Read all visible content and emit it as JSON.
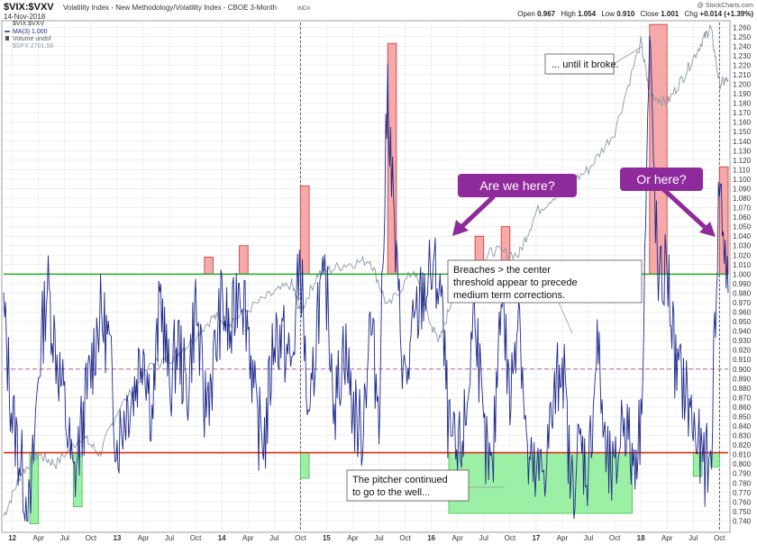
{
  "header": {
    "symbol": "$VIX:$VXV",
    "description": "Volatility Index - New Methodology/Volatility Index - CBOE 3-Month",
    "exchange": "INDX",
    "date": "14-Nov-2018",
    "copyright": "@ StockCharts.com",
    "quote": {
      "open_label": "Open",
      "open": "0.967",
      "high_label": "High",
      "high": "1.054",
      "low_label": "Low",
      "low": "0.910",
      "close_label": "Close",
      "close": "1.001",
      "chg_label": "Chg",
      "chg": "+0.014 (+1.39%)"
    }
  },
  "legend": [
    {
      "label": "$VIX:$VXV",
      "color": "#333333"
    },
    {
      "label": "MA(3) 1.000",
      "color": "#1f2a8c"
    },
    {
      "label": "Volume undsf",
      "color": "#555555"
    },
    {
      "label": "$SPX 2701.58",
      "color": "#8a9aa6"
    }
  ],
  "annotations": [
    {
      "name": "annotation-until-broke",
      "lines": [
        "... until it broke."
      ]
    },
    {
      "name": "annotation-breaches",
      "lines": [
        "Breaches > the center",
        "threshold appear to precede",
        "medium term corrections."
      ]
    },
    {
      "name": "annotation-pitcher",
      "lines": [
        "The pitcher continued",
        "to go to the well..."
      ]
    }
  ],
  "callouts": [
    {
      "name": "callout-are-we-here",
      "text": "Are we here?"
    },
    {
      "name": "callout-or-here",
      "text": "Or here?"
    }
  ],
  "colors": {
    "ratio_line": "#1f2a8c",
    "spx_line": "#8a9aa6",
    "upper_threshold": "#22aa22",
    "lower_threshold": "#e03010",
    "center_threshold": "#c080b0",
    "breach_fill": "#f4a0a0",
    "low_fill": "#90ee9c",
    "callout": "#8e2a9c",
    "grid": "#e6e6e6"
  },
  "chart_data": {
    "type": "line",
    "ylim": [
      0.73,
      1.265
    ],
    "y_ticks": [
      "0.740",
      "0.750",
      "0.760",
      "0.770",
      "0.780",
      "0.790",
      "0.800",
      "0.810",
      "0.820",
      "0.830",
      "0.840",
      "0.850",
      "0.860",
      "0.870",
      "0.880",
      "0.890",
      "0.900",
      "0.910",
      "0.920",
      "0.930",
      "0.940",
      "0.950",
      "0.960",
      "0.970",
      "0.980",
      "0.990",
      "1.000",
      "1.010",
      "1.020",
      "1.030",
      "1.040",
      "1.050",
      "1.060",
      "1.070",
      "1.080",
      "1.090",
      "1.100",
      "1.110",
      "1.120",
      "1.130",
      "1.140",
      "1.150",
      "1.160",
      "1.170",
      "1.180",
      "1.190",
      "1.200",
      "1.210",
      "1.220",
      "1.230",
      "1.240",
      "1.250",
      "1.260"
    ],
    "x_range": [
      "2011-12",
      "2018-11"
    ],
    "x_ticks": [
      {
        "label": "12",
        "date": "2012-01",
        "bold": true
      },
      {
        "label": "Apr",
        "date": "2012-04"
      },
      {
        "label": "Jul",
        "date": "2012-07"
      },
      {
        "label": "Oct",
        "date": "2012-10"
      },
      {
        "label": "13",
        "date": "2013-01",
        "bold": true
      },
      {
        "label": "Apr",
        "date": "2013-04"
      },
      {
        "label": "Jul",
        "date": "2013-07"
      },
      {
        "label": "Oct",
        "date": "2013-10"
      },
      {
        "label": "14",
        "date": "2014-01",
        "bold": true
      },
      {
        "label": "Apr",
        "date": "2014-04"
      },
      {
        "label": "Jul",
        "date": "2014-07"
      },
      {
        "label": "Oct",
        "date": "2014-10"
      },
      {
        "label": "15",
        "date": "2015-01",
        "bold": true
      },
      {
        "label": "Apr",
        "date": "2015-04"
      },
      {
        "label": "Jul",
        "date": "2015-07"
      },
      {
        "label": "Oct",
        "date": "2015-10"
      },
      {
        "label": "16",
        "date": "2016-01",
        "bold": true
      },
      {
        "label": "Apr",
        "date": "2016-04"
      },
      {
        "label": "Jul",
        "date": "2016-07"
      },
      {
        "label": "Oct",
        "date": "2016-10"
      },
      {
        "label": "17",
        "date": "2017-01",
        "bold": true
      },
      {
        "label": "Apr",
        "date": "2017-04"
      },
      {
        "label": "Jul",
        "date": "2017-07"
      },
      {
        "label": "Oct",
        "date": "2017-10"
      },
      {
        "label": "18",
        "date": "2018-01",
        "bold": true
      },
      {
        "label": "Apr",
        "date": "2018-04"
      },
      {
        "label": "Jul",
        "date": "2018-07"
      },
      {
        "label": "Oct",
        "date": "2018-10"
      }
    ],
    "thresholds": {
      "upper": 1.0,
      "center": 0.9,
      "lower": 0.812
    },
    "vertical_markers": [
      "2014-10",
      "2018-10"
    ],
    "breach_zones": [
      {
        "start": "2013-11",
        "end": "2013-12",
        "y1": 1.0,
        "y2": 1.018
      },
      {
        "start": "2014-03",
        "end": "2014-04",
        "y1": 1.0,
        "y2": 1.03
      },
      {
        "start": "2014-10",
        "end": "2014-11",
        "y1": 1.0,
        "y2": 1.093
      },
      {
        "start": "2015-08",
        "end": "2015-09",
        "y1": 1.0,
        "y2": 1.243
      },
      {
        "start": "2016-06",
        "end": "2016-07",
        "y1": 1.0,
        "y2": 1.04
      },
      {
        "start": "2016-09",
        "end": "2016-10",
        "y1": 1.0,
        "y2": 1.05
      },
      {
        "start": "2018-02",
        "end": "2018-04",
        "y1": 1.0,
        "y2": 1.263
      },
      {
        "start": "2018-10",
        "end": "2018-11",
        "y1": 1.0,
        "y2": 1.113
      }
    ],
    "low_zones": [
      {
        "start": "2012-03",
        "end": "2012-04",
        "y1": 0.737,
        "y2": 0.812
      },
      {
        "start": "2012-08",
        "end": "2012-09",
        "y1": 0.755,
        "y2": 0.812
      },
      {
        "start": "2014-10",
        "end": "2014-11",
        "y1": 0.785,
        "y2": 0.812
      },
      {
        "start": "2016-03",
        "end": "2017-12",
        "y1": 0.748,
        "y2": 0.812
      },
      {
        "start": "2018-07",
        "end": "2018-08",
        "y1": 0.787,
        "y2": 0.812
      },
      {
        "start": "2018-09",
        "end": "2018-10",
        "y1": 0.797,
        "y2": 0.812
      }
    ],
    "ratio_series": {
      "name": "MA(3)",
      "points": [
        [
          "2011-12",
          0.96
        ],
        [
          "2012-01",
          0.85
        ],
        [
          "2012-02",
          0.8
        ],
        [
          "2012-03",
          0.74
        ],
        [
          "2012-04",
          0.9
        ],
        [
          "2012-05",
          0.99
        ],
        [
          "2012-06",
          0.92
        ],
        [
          "2012-07",
          0.86
        ],
        [
          "2012-08",
          0.78
        ],
        [
          "2012-09",
          0.84
        ],
        [
          "2012-10",
          0.9
        ],
        [
          "2012-11",
          0.96
        ],
        [
          "2012-12",
          0.93
        ],
        [
          "2013-01",
          0.82
        ],
        [
          "2013-02",
          0.86
        ],
        [
          "2013-03",
          0.88
        ],
        [
          "2013-04",
          0.93
        ],
        [
          "2013-05",
          0.85
        ],
        [
          "2013-06",
          0.98
        ],
        [
          "2013-07",
          0.88
        ],
        [
          "2013-08",
          0.93
        ],
        [
          "2013-09",
          0.87
        ],
        [
          "2013-10",
          0.97
        ],
        [
          "2013-11",
          0.86
        ],
        [
          "2013-12",
          0.9
        ],
        [
          "2014-01",
          0.97
        ],
        [
          "2014-02",
          0.93
        ],
        [
          "2014-03",
          1.0
        ],
        [
          "2014-04",
          0.95
        ],
        [
          "2014-05",
          0.84
        ],
        [
          "2014-06",
          0.83
        ],
        [
          "2014-07",
          0.94
        ],
        [
          "2014-08",
          0.93
        ],
        [
          "2014-09",
          0.9
        ],
        [
          "2014-10",
          1.02
        ],
        [
          "2014-11",
          0.82
        ],
        [
          "2014-12",
          0.97
        ],
        [
          "2015-01",
          0.98
        ],
        [
          "2015-02",
          0.86
        ],
        [
          "2015-03",
          0.93
        ],
        [
          "2015-04",
          0.86
        ],
        [
          "2015-05",
          0.83
        ],
        [
          "2015-06",
          0.95
        ],
        [
          "2015-07",
          0.86
        ],
        [
          "2015-08",
          1.2
        ],
        [
          "2015-09",
          1.0
        ],
        [
          "2015-10",
          0.88
        ],
        [
          "2015-11",
          0.94
        ],
        [
          "2015-12",
          0.98
        ],
        [
          "2016-01",
          1.0
        ],
        [
          "2016-02",
          0.99
        ],
        [
          "2016-03",
          0.83
        ],
        [
          "2016-04",
          0.8
        ],
        [
          "2016-05",
          0.85
        ],
        [
          "2016-06",
          0.98
        ],
        [
          "2016-07",
          0.82
        ],
        [
          "2016-08",
          0.78
        ],
        [
          "2016-09",
          1.0
        ],
        [
          "2016-10",
          0.86
        ],
        [
          "2016-11",
          0.98
        ],
        [
          "2016-12",
          0.8
        ],
        [
          "2017-01",
          0.78
        ],
        [
          "2017-02",
          0.8
        ],
        [
          "2017-03",
          0.86
        ],
        [
          "2017-04",
          0.92
        ],
        [
          "2017-05",
          0.77
        ],
        [
          "2017-06",
          0.82
        ],
        [
          "2017-07",
          0.79
        ],
        [
          "2017-08",
          0.93
        ],
        [
          "2017-09",
          0.8
        ],
        [
          "2017-10",
          0.78
        ],
        [
          "2017-11",
          0.86
        ],
        [
          "2017-12",
          0.8
        ],
        [
          "2018-01",
          0.84
        ],
        [
          "2018-02",
          1.24
        ],
        [
          "2018-03",
          0.98
        ],
        [
          "2018-04",
          1.01
        ],
        [
          "2018-05",
          0.9
        ],
        [
          "2018-06",
          0.88
        ],
        [
          "2018-07",
          0.84
        ],
        [
          "2018-08",
          0.8
        ],
        [
          "2018-09",
          0.8
        ],
        [
          "2018-10",
          1.1
        ],
        [
          "2018-11",
          0.98
        ]
      ]
    },
    "spx_overlay": {
      "name": "$SPX",
      "points": [
        [
          "2011-12",
          0.745
        ],
        [
          "2012-02",
          0.79
        ],
        [
          "2012-04",
          0.81
        ],
        [
          "2012-06",
          0.8
        ],
        [
          "2012-09",
          0.83
        ],
        [
          "2012-11",
          0.81
        ],
        [
          "2013-01",
          0.855
        ],
        [
          "2013-05",
          0.905
        ],
        [
          "2013-07",
          0.91
        ],
        [
          "2013-09",
          0.925
        ],
        [
          "2013-12",
          0.955
        ],
        [
          "2014-02",
          0.95
        ],
        [
          "2014-06",
          0.975
        ],
        [
          "2014-09",
          0.99
        ],
        [
          "2014-10",
          0.96
        ],
        [
          "2014-12",
          1.0
        ],
        [
          "2015-03",
          1.01
        ],
        [
          "2015-06",
          1.015
        ],
        [
          "2015-08",
          0.965
        ],
        [
          "2015-11",
          1.005
        ],
        [
          "2016-01",
          0.945
        ],
        [
          "2016-02",
          0.93
        ],
        [
          "2016-04",
          0.995
        ],
        [
          "2016-06",
          1.005
        ],
        [
          "2016-08",
          1.025
        ],
        [
          "2016-11",
          1.02
        ],
        [
          "2017-01",
          1.065
        ],
        [
          "2017-04",
          1.09
        ],
        [
          "2017-07",
          1.11
        ],
        [
          "2017-10",
          1.15
        ],
        [
          "2018-01",
          1.245
        ],
        [
          "2018-02",
          1.19
        ],
        [
          "2018-04",
          1.18
        ],
        [
          "2018-06",
          1.21
        ],
        [
          "2018-08",
          1.245
        ],
        [
          "2018-09",
          1.26
        ],
        [
          "2018-10",
          1.2
        ],
        [
          "2018-11",
          1.205
        ]
      ]
    }
  }
}
